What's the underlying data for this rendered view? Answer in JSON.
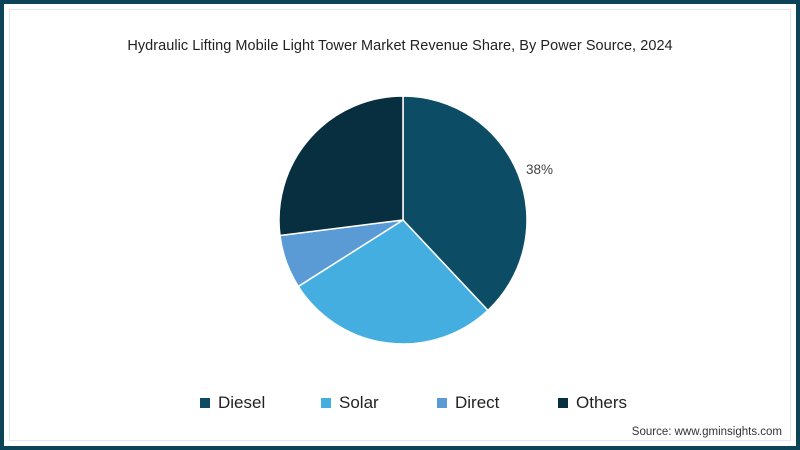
{
  "chart_data": {
    "type": "pie",
    "title": "Hydraulic Lifting Mobile Light Tower Market Revenue Share, By Power Source, 2024",
    "categories": [
      "Diesel",
      "Solar",
      "Direct",
      "Others"
    ],
    "values": [
      38,
      28,
      7,
      27
    ],
    "unit": "%",
    "colors": [
      "#0c4d65",
      "#45aee0",
      "#5b9bd5",
      "#082f40"
    ],
    "data_labels": [
      {
        "category": "Diesel",
        "text": "38%"
      }
    ],
    "legend_position": "bottom",
    "start_angle_deg": 0,
    "direction": "clockwise"
  },
  "header": {
    "title": "Hydraulic Lifting Mobile Light Tower Market Revenue Share, By Power Source, 2024"
  },
  "labels": {
    "diesel_value": "38%"
  },
  "legend": {
    "items": [
      {
        "label": "Diesel",
        "color": "#0c4d65"
      },
      {
        "label": "Solar",
        "color": "#45aee0"
      },
      {
        "label": "Direct",
        "color": "#5b9bd5"
      },
      {
        "label": "Others",
        "color": "#082f40"
      }
    ]
  },
  "footer": {
    "source": "Source: www.gminsights.com"
  }
}
